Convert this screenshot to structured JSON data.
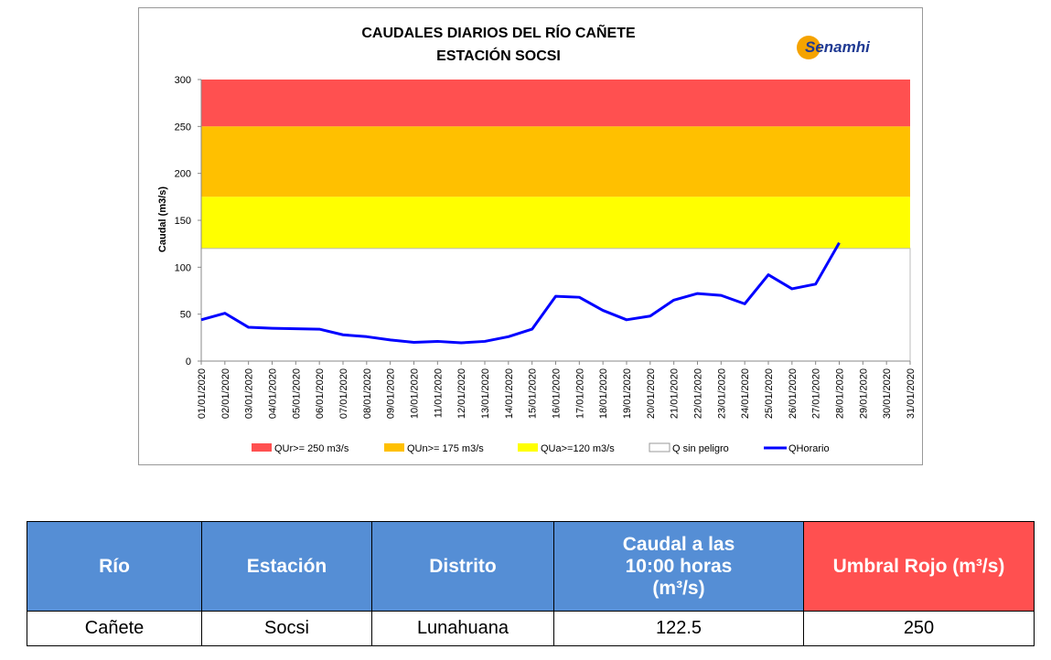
{
  "chart_data": {
    "type": "line",
    "title": [
      "CAUDALES DIARIOS DEL RÍO CAÑETE",
      "ESTACIÓN SOCSI"
    ],
    "logo": "Senamhi",
    "ylabel": "Caudal (m3/s)",
    "categories": [
      "01/01/2020",
      "02/01/2020",
      "03/01/2020",
      "04/01/2020",
      "05/01/2020",
      "06/01/2020",
      "07/01/2020",
      "08/01/2020",
      "09/01/2020",
      "10/01/2020",
      "11/01/2020",
      "12/01/2020",
      "13/01/2020",
      "14/01/2020",
      "15/01/2020",
      "16/01/2020",
      "17/01/2020",
      "18/01/2020",
      "19/01/2020",
      "20/01/2020",
      "21/01/2020",
      "22/01/2020",
      "23/01/2020",
      "24/01/2020",
      "25/01/2020",
      "26/01/2020",
      "27/01/2020",
      "28/01/2020",
      "29/01/2020",
      "30/01/2020",
      "31/01/2020"
    ],
    "bands": [
      {
        "name": "QUr>= 250 m3/s",
        "color": "#ff5050",
        "from": 250,
        "to": 300
      },
      {
        "name": "QUn>= 175 m3/s",
        "color": "#ffc000",
        "from": 175,
        "to": 250
      },
      {
        "name": "QUa>=120 m3/s",
        "color": "#ffff00",
        "from": 120,
        "to": 175
      },
      {
        "name": "Q sin peligro",
        "color": "#ffffff",
        "from": 0,
        "to": 120
      }
    ],
    "series": [
      {
        "name": "QHorario",
        "color": "#0000ff",
        "values": [
          44,
          51,
          36,
          35,
          34.5,
          34,
          28,
          26,
          22.5,
          20,
          21,
          19.5,
          21,
          26,
          34,
          69,
          68,
          54,
          44,
          48,
          65,
          72,
          70,
          61,
          92,
          77,
          82,
          126,
          null,
          null,
          null
        ]
      }
    ],
    "ylim": [
      0,
      300
    ],
    "yticks": [
      0,
      50,
      100,
      150,
      200,
      250,
      300
    ]
  },
  "table": {
    "header": [
      "Río",
      "Estación",
      "Distrito",
      "Caudal a las 10:00 horas (m³/s)",
      "Umbral Rojo (m³/s)"
    ],
    "rows": [
      [
        "Cañete",
        "Socsi",
        "Lunahuana",
        "122.5",
        "250"
      ]
    ]
  }
}
